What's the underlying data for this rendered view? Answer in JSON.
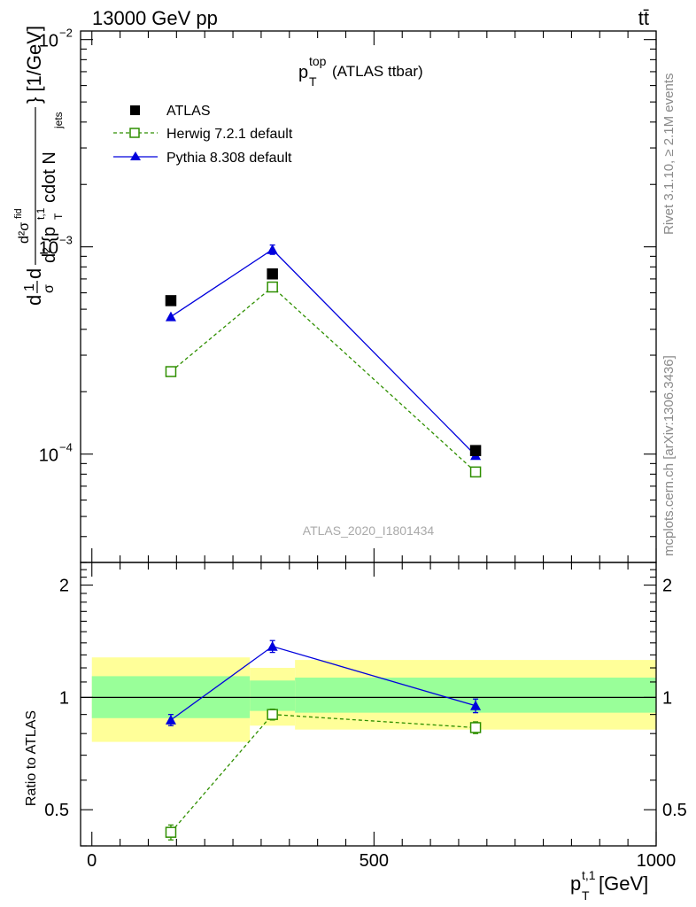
{
  "header": {
    "left": "13000 GeV pp",
    "right": "tt̄"
  },
  "main_title": {
    "base": "p",
    "sup": "top",
    "sub": "T",
    "rest": " (ATLAS ttbar)"
  },
  "side_labels": {
    "rivet": "Rivet 3.1.10, ≥ 2.1M events",
    "mcplots": "mcplots.cern.ch [arXiv:1306.3436]"
  },
  "watermark": "ATLAS_2020_I1801434",
  "colors": {
    "atlas": "#000000",
    "herwig": "#2f8f00",
    "pythia": "#0000dd",
    "band_outer": "#ffff99",
    "band_inner": "#99ff99"
  },
  "chart_data": [
    {
      "type": "scatter",
      "ylabel": "d1/σ d d²σ^fid / d²{p_T^{t,1} cdot N_jets} [1/GeV]",
      "ylabel_parts": {
        "a": "d",
        "frac1_num": "1",
        "frac1_den": "σ",
        "b": "d",
        "frac2_num": "d²σ",
        "frac2_num_sup": "fid",
        "frac2_den": "d² {p",
        "frac2_den_sub": "T",
        "frac2_den_sup": "t,1",
        "frac2_den_rest": " cdot N",
        "frac2_den_sub2": "jets",
        "tail": "} [1/GeV]"
      },
      "yscale": "log",
      "ylim": [
        3e-05,
        0.011
      ],
      "xlim": [
        -20,
        1000
      ],
      "ytick_labels": [
        {
          "value": 0.01,
          "mantissa": "10",
          "exp": "−2"
        },
        {
          "value": 0.001,
          "mantissa": "10",
          "exp": "−3"
        },
        {
          "value": 0.0001,
          "mantissa": "10",
          "exp": "−4"
        }
      ],
      "legend_position": "top-left",
      "series": [
        {
          "name": "ATLAS",
          "marker": "square-filled",
          "x": [
            140,
            320,
            680
          ],
          "y": [
            0.00055,
            0.00074,
            0.000104
          ]
        },
        {
          "name": "Herwig 7.2.1 default",
          "marker": "square-open",
          "line": "dashed",
          "x": [
            140,
            320,
            680
          ],
          "y": [
            0.00025,
            0.00064,
            8.2e-05
          ]
        },
        {
          "name": "Pythia 8.308 default",
          "marker": "triangle-filled",
          "line": "solid",
          "x": [
            140,
            320,
            680
          ],
          "y": [
            0.00046,
            0.00097,
            9.85e-05
          ],
          "yerr": [
            0,
            5e-05,
            0
          ]
        }
      ]
    },
    {
      "type": "line",
      "ylabel": "Ratio to ATLAS",
      "xlabel": "p_T^{t,1} [GeV]",
      "xlabel_parts": {
        "base": "p",
        "sub": "T",
        "sup": "t,1",
        "rest": " [GeV]"
      },
      "xlim": [
        -20,
        1000
      ],
      "ylim": [
        0.4,
        2.3
      ],
      "yscale": "log",
      "xtick_labels": [
        {
          "value": 0,
          "label": "0"
        },
        {
          "value": 500,
          "label": "500"
        },
        {
          "value": 1000,
          "label": "1000"
        }
      ],
      "ytick_labels": [
        {
          "value": 2,
          "label": "2"
        },
        {
          "value": 1,
          "label": "1"
        },
        {
          "value": 0.5,
          "label": "0.5"
        }
      ],
      "bands": [
        {
          "x0": 0,
          "x1": 280,
          "outer": [
            0.76,
            1.28
          ],
          "inner": [
            0.88,
            1.14
          ]
        },
        {
          "x0": 280,
          "x1": 360,
          "outer": [
            0.84,
            1.2
          ],
          "inner": [
            0.92,
            1.11
          ]
        },
        {
          "x0": 360,
          "x1": 1000,
          "outer": [
            0.82,
            1.26
          ],
          "inner": [
            0.91,
            1.13
          ]
        }
      ],
      "series": [
        {
          "name": "Herwig 7.2.1 default",
          "x": [
            140,
            320,
            680
          ],
          "y": [
            0.435,
            0.9,
            0.83
          ],
          "yerr": [
            0.02,
            0.03,
            0.03
          ]
        },
        {
          "name": "Pythia 8.308 default",
          "x": [
            140,
            320,
            680
          ],
          "y": [
            0.87,
            1.37,
            0.95
          ],
          "yerr": [
            0.03,
            0.05,
            0.04
          ]
        }
      ]
    }
  ]
}
